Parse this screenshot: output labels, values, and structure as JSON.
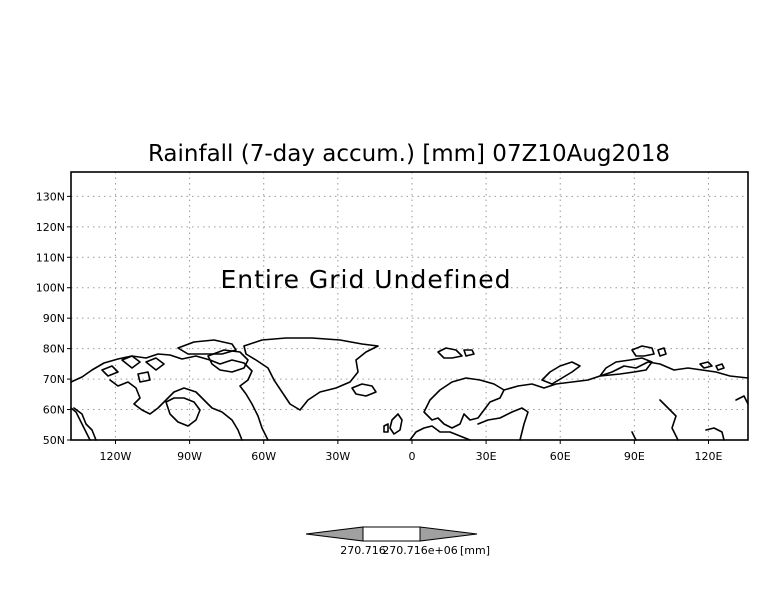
{
  "title": "Rainfall (7-day accum.) [mm] 07Z10Aug2018",
  "message": "Entire Grid Undefined",
  "axes": {
    "lat_labels": [
      "130N",
      "120N",
      "110N",
      "100N",
      "90N",
      "80N",
      "70N",
      "60N",
      "50N"
    ],
    "lon_labels": [
      "120W",
      "90W",
      "60W",
      "30W",
      "0",
      "30E",
      "60E",
      "90E",
      "120E"
    ],
    "lat_range": [
      50,
      138
    ],
    "lon_range": [
      -138,
      136
    ],
    "grid": true
  },
  "colorbar": {
    "label_a": "270.716",
    "label_b": "270.716e+06",
    "unit": "[mm]",
    "fill_color": "#a0a0a0"
  },
  "colors": {
    "background": "#ffffff",
    "coastline": "#000000",
    "grid": "#9a9a9a"
  }
}
